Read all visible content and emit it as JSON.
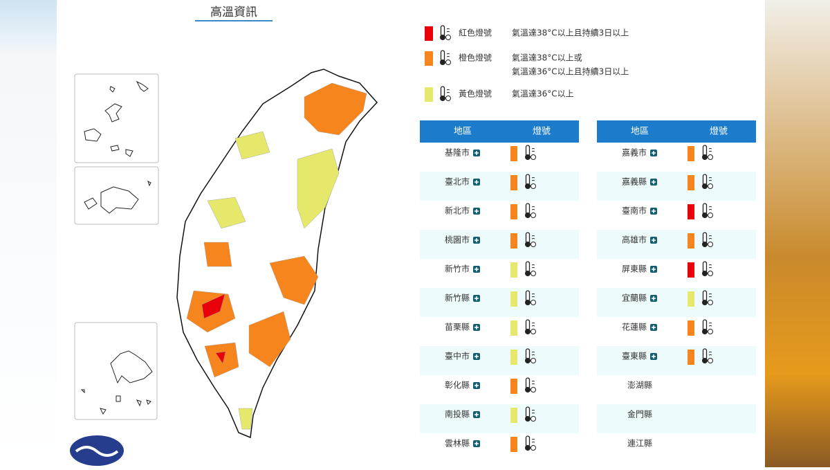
{
  "title": "高溫資訊",
  "legend": [
    {
      "label": "紅色燈號",
      "color": "#e8000b",
      "lines": [
        "氣溫達38°C以上且持續3日以上"
      ]
    },
    {
      "label": "橙色燈號",
      "color": "#f7851e",
      "lines": [
        "氣溫達38°C以上或",
        "氣溫達36°C以上且持續3日以上"
      ]
    },
    {
      "label": "黃色燈號",
      "color": "#e5e86a",
      "lines": [
        "氣溫達36°C以上"
      ]
    }
  ],
  "tables": [
    {
      "headers": [
        "地區",
        "燈號"
      ],
      "rows": [
        {
          "name": "基隆市",
          "color": "#f7851e"
        },
        {
          "name": "臺北市",
          "color": "#f7851e"
        },
        {
          "name": "新北市",
          "color": "#f7851e"
        },
        {
          "name": "桃園市",
          "color": "#f7851e"
        },
        {
          "name": "新竹市",
          "color": "#e5e86a"
        },
        {
          "name": "新竹縣",
          "color": "#e5e86a"
        },
        {
          "name": "苗栗縣",
          "color": "#e5e86a"
        },
        {
          "name": "臺中市",
          "color": "#e5e86a"
        },
        {
          "name": "彰化縣",
          "color": "#f7851e"
        },
        {
          "name": "南投縣",
          "color": "#e5e86a"
        },
        {
          "name": "雲林縣",
          "color": "#f7851e"
        }
      ]
    },
    {
      "headers": [
        "地區",
        "燈號"
      ],
      "rows": [
        {
          "name": "嘉義市",
          "color": "#f7851e"
        },
        {
          "name": "嘉義縣",
          "color": "#f7851e"
        },
        {
          "name": "臺南市",
          "color": "#e8000b"
        },
        {
          "name": "高雄市",
          "color": "#f7851e"
        },
        {
          "name": "屏東縣",
          "color": "#e8000b"
        },
        {
          "name": "宜蘭縣",
          "color": "#e5e86a"
        },
        {
          "name": "花蓮縣",
          "color": "#f7851e"
        },
        {
          "name": "臺東縣",
          "color": "#f7851e"
        },
        {
          "name": "澎湖縣"
        },
        {
          "name": "金門縣"
        },
        {
          "name": "連江縣"
        }
      ]
    }
  ]
}
